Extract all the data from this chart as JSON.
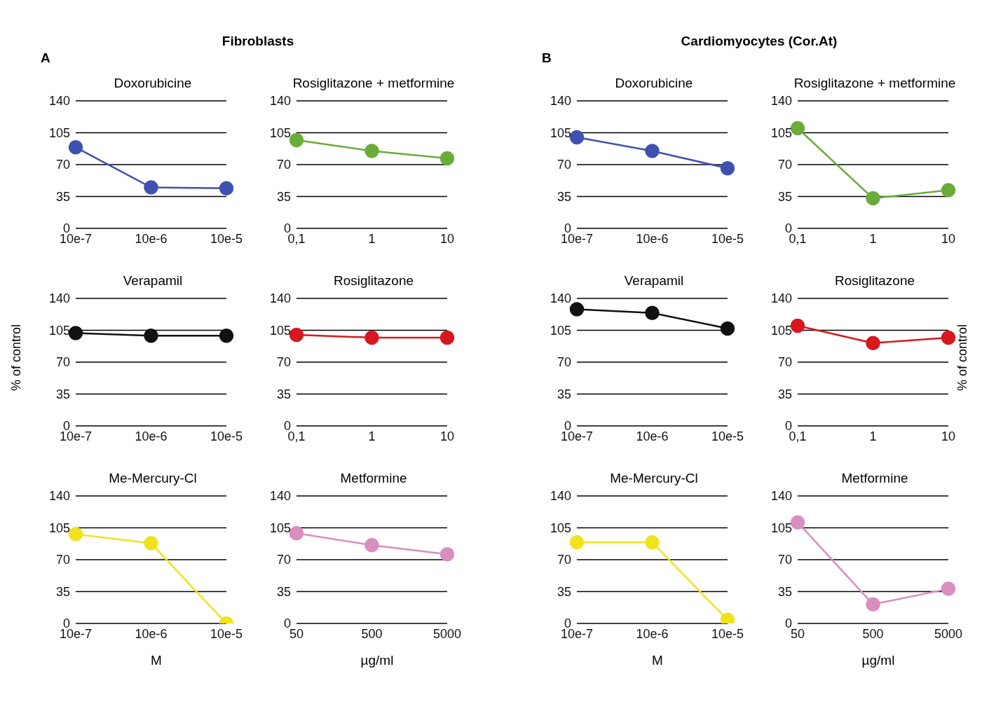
{
  "chart_data": [
    {
      "type": "line",
      "title": "Doxorubicine",
      "annotations": [
        "A",
        "Fibroblasts"
      ],
      "categories": [
        "10e-7",
        "10e-6",
        "10e-5"
      ],
      "series": [
        {
          "color": "#3f51b0",
          "values": [
            89,
            45,
            44
          ]
        }
      ],
      "ylim": [
        0,
        140
      ],
      "yticks": [
        0,
        35,
        70,
        105,
        140
      ],
      "grid": "y",
      "marker": "circle",
      "line_style": "solid"
    },
    {
      "type": "line",
      "title": "Rosiglitazone + metformine",
      "categories": [
        "0,1",
        "1",
        "10"
      ],
      "series": [
        {
          "color": "#6aac3a",
          "values": [
            97,
            85,
            77
          ]
        }
      ],
      "ylim": [
        0,
        140
      ],
      "yticks": [
        0,
        35,
        70,
        105,
        140
      ],
      "grid": "y",
      "marker": "circle",
      "line_style": "solid"
    },
    {
      "type": "line",
      "title": "Verapamil",
      "ylabel": "% of control",
      "categories": [
        "10e-7",
        "10e-6",
        "10e-5"
      ],
      "series": [
        {
          "color": "#111111",
          "values": [
            102,
            99,
            99
          ]
        }
      ],
      "ylim": [
        0,
        140
      ],
      "yticks": [
        0,
        35,
        70,
        105,
        140
      ],
      "grid": "y",
      "marker": "circle",
      "line_style": "solid"
    },
    {
      "type": "line",
      "title": "Rosiglitazone",
      "categories": [
        "0,1",
        "1",
        "10"
      ],
      "series": [
        {
          "color": "#d9171e",
          "values": [
            100,
            97,
            97
          ]
        }
      ],
      "ylim": [
        0,
        140
      ],
      "yticks": [
        0,
        35,
        70,
        105,
        140
      ],
      "grid": "y",
      "marker": "circle",
      "line_style": "solid"
    },
    {
      "type": "line",
      "title": "Me-Mercury-Cl",
      "xlabel": "M",
      "categories": [
        "10e-7",
        "10e-6",
        "10e-5"
      ],
      "series": [
        {
          "color": "#f0e31e",
          "values": [
            98,
            88,
            0
          ]
        }
      ],
      "ylim": [
        0,
        140
      ],
      "yticks": [
        0,
        35,
        70,
        105,
        140
      ],
      "grid": "y",
      "marker": "circle",
      "line_style": "solid"
    },
    {
      "type": "line",
      "title": "Metformine",
      "xlabel": "µg/ml",
      "categories": [
        "50",
        "500",
        "5000"
      ],
      "series": [
        {
          "color": "#d98ec0",
          "values": [
            99,
            86,
            76
          ]
        }
      ],
      "ylim": [
        0,
        140
      ],
      "yticks": [
        0,
        35,
        70,
        105,
        140
      ],
      "grid": "y",
      "marker": "circle",
      "line_style": "solid"
    },
    {
      "type": "line",
      "title": "Doxorubicine",
      "annotations": [
        "B",
        "Cardiomyocytes (Cor.At)"
      ],
      "categories": [
        "10e-7",
        "10e-6",
        "10e-5"
      ],
      "series": [
        {
          "color": "#3f51b0",
          "values": [
            100,
            85,
            66
          ]
        }
      ],
      "ylim": [
        0,
        140
      ],
      "yticks": [
        0,
        35,
        70,
        105,
        140
      ],
      "grid": "y",
      "marker": "circle",
      "line_style": "solid"
    },
    {
      "type": "line",
      "title": "Rosiglitazone + metformine",
      "categories": [
        "0,1",
        "1",
        "10"
      ],
      "series": [
        {
          "color": "#6aac3a",
          "values": [
            110,
            33,
            42
          ]
        }
      ],
      "ylim": [
        0,
        140
      ],
      "yticks": [
        0,
        35,
        70,
        105,
        140
      ],
      "grid": "y",
      "marker": "circle",
      "line_style": "solid"
    },
    {
      "type": "line",
      "title": "Verapamil",
      "categories": [
        "10e-7",
        "10e-6",
        "10e-5"
      ],
      "series": [
        {
          "color": "#111111",
          "values": [
            128,
            124,
            107
          ]
        }
      ],
      "ylim": [
        0,
        140
      ],
      "yticks": [
        0,
        35,
        70,
        105,
        140
      ],
      "grid": "y",
      "marker": "circle",
      "line_style": "solid"
    },
    {
      "type": "line",
      "title": "Rosiglitazone",
      "ylabel": "% of control",
      "categories": [
        "0,1",
        "1",
        "10"
      ],
      "series": [
        {
          "color": "#d9171e",
          "values": [
            110,
            91,
            97
          ]
        }
      ],
      "ylim": [
        0,
        140
      ],
      "yticks": [
        0,
        35,
        70,
        105,
        140
      ],
      "grid": "y",
      "marker": "circle",
      "line_style": "solid"
    },
    {
      "type": "line",
      "title": "Me-Mercury-Cl",
      "xlabel": "M",
      "categories": [
        "10e-7",
        "10e-6",
        "10e-5"
      ],
      "series": [
        {
          "color": "#f0e31e",
          "values": [
            89,
            89,
            4
          ]
        }
      ],
      "ylim": [
        0,
        140
      ],
      "yticks": [
        0,
        35,
        70,
        105,
        140
      ],
      "grid": "y",
      "marker": "circle",
      "line_style": "solid"
    },
    {
      "type": "line",
      "title": "Metformine",
      "xlabel": "µg/ml",
      "categories": [
        "50",
        "500",
        "5000"
      ],
      "series": [
        {
          "color": "#d98ec0",
          "values": [
            111,
            21,
            38
          ]
        }
      ],
      "ylim": [
        0,
        140
      ],
      "yticks": [
        0,
        35,
        70,
        105,
        140
      ],
      "grid": "y",
      "marker": "circle",
      "line_style": "solid"
    }
  ]
}
